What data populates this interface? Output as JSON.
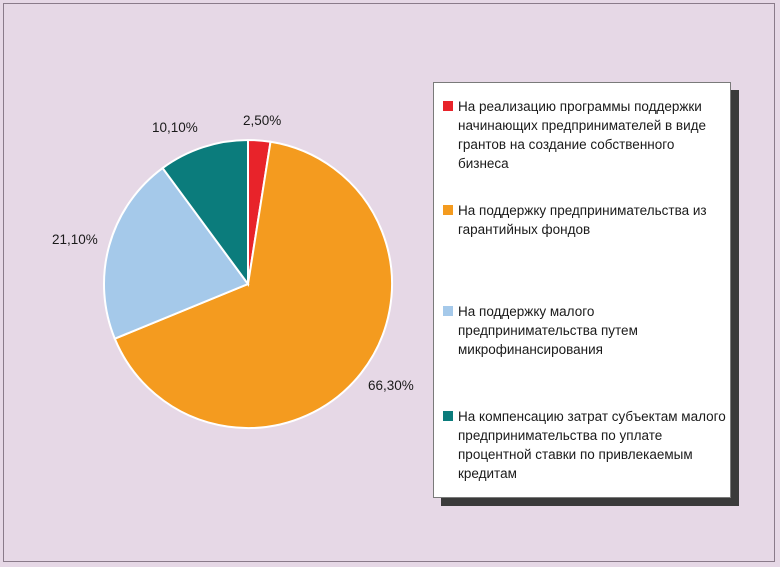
{
  "chart_data": {
    "type": "pie",
    "title": "",
    "slices": [
      {
        "label": "На реализацию программы поддержки начинающих предпринимателей в виде грантов на создание собственного бизнеса",
        "value": 2.5,
        "display": "2,50%",
        "color": "#e8232a"
      },
      {
        "label": "На поддержку предпринимательства из гарантийных фондов",
        "value": 66.3,
        "display": "66,30%",
        "color": "#f49b1f"
      },
      {
        "label": "На поддержку малого предпринимательства путем микрофинансирования",
        "value": 21.1,
        "display": "21,10%",
        "color": "#a5c9ea"
      },
      {
        "label": "На компенсацию затрат субъектам малого предпринимательства по уплате процентной ставки по привлекаемым кредитам",
        "value": 10.1,
        "display": "10,10%",
        "color": "#0b7c7c"
      }
    ],
    "legend_position": "right",
    "start_angle": "12 o'clock",
    "direction": "clockwise"
  }
}
